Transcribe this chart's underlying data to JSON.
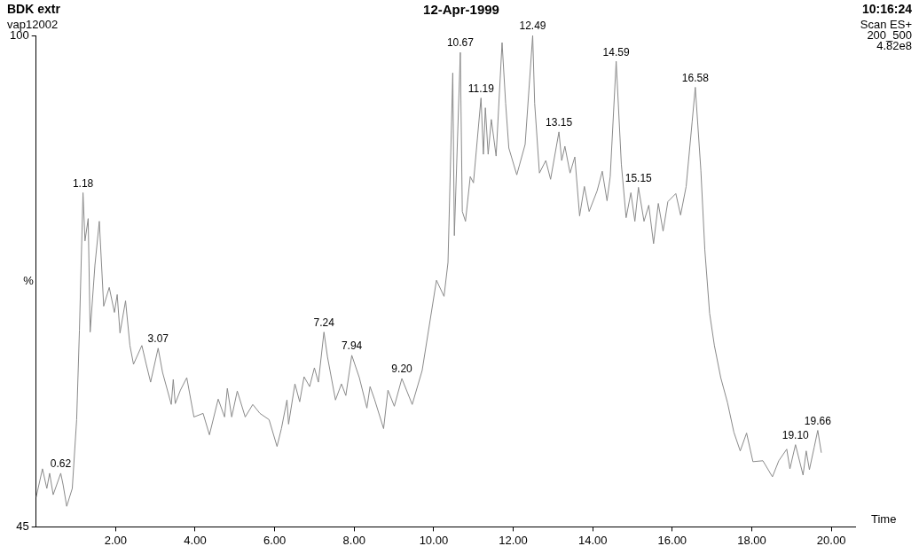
{
  "chart_data": {
    "type": "line",
    "title": "12-Apr-1999",
    "xlabel": "Time",
    "ylabel": "%",
    "x": [
      0,
      0.16,
      0.27,
      0.34,
      0.43,
      0.62,
      0.68,
      0.77,
      0.91,
      1.02,
      1.09,
      1.18,
      1.23,
      1.31,
      1.36,
      1.48,
      1.59,
      1.7,
      1.84,
      1.97,
      2.04,
      2.11,
      2.25,
      2.36,
      2.45,
      2.66,
      2.77,
      2.88,
      3.07,
      3.18,
      3.4,
      3.45,
      3.5,
      3.63,
      3.79,
      3.97,
      4.2,
      4.36,
      4.58,
      4.74,
      4.81,
      4.92,
      5.06,
      5.26,
      5.45,
      5.63,
      5.86,
      6.06,
      6.17,
      6.31,
      6.35,
      6.51,
      6.63,
      6.74,
      6.88,
      7,
      7.1,
      7.24,
      7.33,
      7.53,
      7.68,
      7.79,
      7.94,
      8.13,
      8.32,
      8.4,
      8.51,
      8.74,
      8.85,
      9.01,
      9.2,
      9.46,
      9.71,
      10.07,
      10.26,
      10.36,
      10.48,
      10.52,
      10.67,
      10.72,
      10.8,
      10.92,
      11,
      11.19,
      11.25,
      11.3,
      11.37,
      11.45,
      11.57,
      11.72,
      11.81,
      11.89,
      12.09,
      12.3,
      12.49,
      12.54,
      12.66,
      12.82,
      12.94,
      13.15,
      13.22,
      13.3,
      13.43,
      13.55,
      13.67,
      13.79,
      13.91,
      14.11,
      14.24,
      14.36,
      14.44,
      14.59,
      14.72,
      14.84,
      14.96,
      15.06,
      15.15,
      15.29,
      15.41,
      15.53,
      15.65,
      15.77,
      15.89,
      16.09,
      16.21,
      16.35,
      16.5,
      16.58,
      16.72,
      16.82,
      16.94,
      17.06,
      17.22,
      17.39,
      17.55,
      17.71,
      17.87,
      18.03,
      18.28,
      18.52,
      18.68,
      18.88,
      18.96,
      19.1,
      19.29,
      19.37,
      19.45,
      19.57,
      19.66,
      19.75
    ],
    "series": [
      {
        "color": "#8a8a8a",
        "values": [
          48.3,
          51.5,
          49.3,
          51,
          48.6,
          51,
          49.7,
          47.3,
          49.3,
          57,
          67,
          82.4,
          77,
          79.5,
          66.8,
          74.3,
          79.2,
          69.7,
          71.8,
          69,
          71,
          66.7,
          70.3,
          65.3,
          63.2,
          65.3,
          63.2,
          61.2,
          65,
          62.3,
          58.7,
          61.5,
          58.8,
          60.3,
          61.7,
          57.3,
          57.7,
          55.3,
          59.3,
          57.3,
          60.5,
          57.3,
          60.2,
          57.3,
          58.7,
          57.7,
          57,
          54,
          56,
          59.2,
          56.5,
          61,
          59,
          61.8,
          60.7,
          62.8,
          61.2,
          66.8,
          64,
          59.2,
          61,
          59.7,
          64.2,
          61.7,
          58.3,
          60.7,
          59.3,
          56,
          60.3,
          58.5,
          61.6,
          58.7,
          62.5,
          72.6,
          70.8,
          74.6,
          95.8,
          77.6,
          98.1,
          80.3,
          79.2,
          84.2,
          83.5,
          93,
          86.7,
          91.9,
          86.7,
          90.6,
          86.5,
          99.2,
          92.4,
          87.4,
          84.4,
          87.8,
          100,
          92.4,
          84.6,
          86,
          83.9,
          89.2,
          86,
          87.6,
          84.6,
          86.4,
          79.8,
          83.1,
          80.3,
          82.6,
          84.8,
          81.5,
          84.2,
          97.1,
          85.6,
          79.6,
          82.4,
          79.2,
          83,
          79.2,
          81,
          76.7,
          81.2,
          78.1,
          81.4,
          82.3,
          79.9,
          83.1,
          90.3,
          94.2,
          84.9,
          76,
          68.9,
          65.3,
          61.7,
          58.9,
          55.6,
          53.5,
          55.5,
          52.3,
          52.4,
          50.6,
          52.4,
          53.7,
          51.5,
          54.2,
          50.8,
          53.5,
          51.4,
          53.9,
          55.8,
          53.3
        ]
      }
    ],
    "xlim": [
      0,
      20.6
    ],
    "ylim": [
      45,
      100
    ],
    "xticks": [
      {
        "value": 2,
        "label": "2.00"
      },
      {
        "value": 4,
        "label": "4.00"
      },
      {
        "value": 6,
        "label": "6.00"
      },
      {
        "value": 8,
        "label": "8.00"
      },
      {
        "value": 10,
        "label": "10.00"
      },
      {
        "value": 12,
        "label": "12.00"
      },
      {
        "value": 14,
        "label": "14.00"
      },
      {
        "value": 16,
        "label": "16.00"
      },
      {
        "value": 18,
        "label": "18.00"
      },
      {
        "value": 20,
        "label": "20.00"
      }
    ],
    "yticks": [
      45,
      100
    ],
    "marker": "none",
    "line_style": "solid",
    "grid": false,
    "legend": false,
    "annotations": [
      "BDK extr",
      "vap12002",
      "10:16:24",
      "Scan ES+",
      "200_500",
      "4.82e8",
      {
        "text": "0.62",
        "x": 0.62,
        "y": 51
      },
      {
        "text": "1.18",
        "x": 1.18,
        "y": 82.4
      },
      {
        "text": "3.07",
        "x": 3.07,
        "y": 65
      },
      {
        "text": "7.24",
        "x": 7.24,
        "y": 66.8
      },
      {
        "text": "7.94",
        "x": 7.94,
        "y": 64.2
      },
      {
        "text": "9.20",
        "x": 9.2,
        "y": 61.6
      },
      {
        "text": "10.67",
        "x": 10.67,
        "y": 98.1
      },
      {
        "text": "11.19",
        "x": 11.19,
        "y": 93
      },
      {
        "text": "12.49",
        "x": 12.49,
        "y": 100
      },
      {
        "text": "13.15",
        "x": 13.15,
        "y": 89.2
      },
      {
        "text": "14.59",
        "x": 14.59,
        "y": 97.1
      },
      {
        "text": "15.15",
        "x": 15.15,
        "y": 83
      },
      {
        "text": "16.58",
        "x": 16.58,
        "y": 94.2
      },
      {
        "text": "19.10",
        "x": 19.1,
        "y": 54.2
      },
      {
        "text": "19.66",
        "x": 19.66,
        "y": 55.8
      }
    ]
  }
}
